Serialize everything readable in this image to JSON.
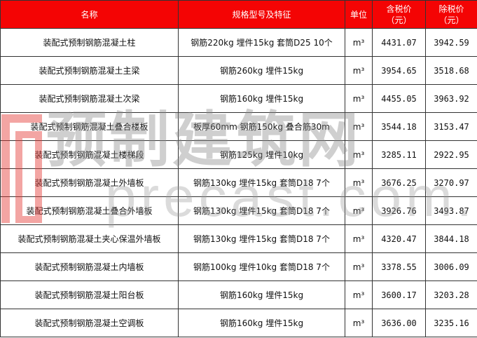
{
  "header": {
    "name": "名称",
    "spec": "规格型号及特征",
    "unit": "单位",
    "price_tax": "含税价\n（元）",
    "price_notax": "除税价\n（元）"
  },
  "rows": [
    {
      "name": "装配式预制钢筋混凝土柱",
      "spec": "钢筋220kg 埋件15kg 套筒D25 10个",
      "unit": "m³",
      "price_tax": "4431.07",
      "price_notax": "3942.59"
    },
    {
      "name": "装配式预制钢筋混凝土主梁",
      "spec": "钢筋260kg 埋件15kg",
      "unit": "m³",
      "price_tax": "3954.65",
      "price_notax": "3518.68"
    },
    {
      "name": "装配式预制钢筋混凝土次梁",
      "spec": "钢筋160kg 埋件15kg",
      "unit": "m³",
      "price_tax": "4455.05",
      "price_notax": "3963.92"
    },
    {
      "name": "装配式预制钢筋混凝土叠合楼板",
      "spec": "板厚60mm  钢筋150kg 叠合筋30m",
      "unit": "m³",
      "price_tax": "3544.18",
      "price_notax": "3153.47"
    },
    {
      "name": "装配式预制钢筋混凝土楼梯段",
      "spec": "钢筋125kg 埋件10kg",
      "unit": "m³",
      "price_tax": "3285.11",
      "price_notax": "2922.95"
    },
    {
      "name": "装配式预制钢筋混凝土外墙板",
      "spec": "钢筋130kg 埋件15kg 套筒D18 7个",
      "unit": "m³",
      "price_tax": "3676.25",
      "price_notax": "3270.97"
    },
    {
      "name": "装配式预制钢筋混凝土叠合外墙板",
      "spec": "钢筋130kg 埋件15kg 套筒D18 7个",
      "unit": "m³",
      "price_tax": "3926.76",
      "price_notax": "3493.87"
    },
    {
      "name": "装配式预制钢筋混凝土夹心保温外墙板",
      "spec": "钢筋130kg 埋件15kg 套筒D18 7个",
      "unit": "m³",
      "price_tax": "4320.47",
      "price_notax": "3844.18"
    },
    {
      "name": "装配式预制钢筋混凝土内墙板",
      "spec": "钢筋100kg 埋件10kg  套筒D18 7个",
      "unit": "m³",
      "price_tax": "3378.55",
      "price_notax": "3006.09"
    },
    {
      "name": "装配式预制钢筋混凝土阳台板",
      "spec": "钢筋160kg 埋件15kg",
      "unit": "m³",
      "price_tax": "3600.17",
      "price_notax": "3203.28"
    },
    {
      "name": "装配式预制钢筋混凝土空调板",
      "spec": "钢筋160kg 埋件15kg",
      "unit": "m³",
      "price_tax": "3636.00",
      "price_notax": "3235.16"
    }
  ],
  "watermark": {
    "cn": "预制建筑网",
    "en": "precast.com.cn"
  },
  "colors": {
    "header_bg": "#f40404",
    "header_text": "#ffffff",
    "logo": "#e53935"
  }
}
